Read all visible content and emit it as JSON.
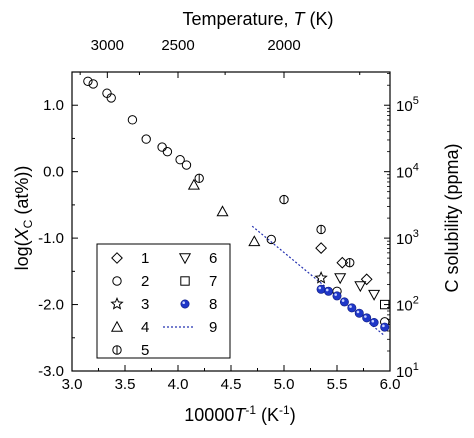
{
  "chart_data": {
    "type": "scatter",
    "x_axis_bottom": {
      "label_main": "10000",
      "label_T": "T",
      "label_sup": "-1",
      "label_unit": " (K",
      "label_unit_sup": "-1",
      "label_close": ")",
      "range": [
        3.0,
        6.0
      ],
      "ticks": [
        3.0,
        3.5,
        4.0,
        4.5,
        5.0,
        5.5,
        6.0
      ],
      "tick_labels": [
        "3.0",
        "3.5",
        "4.0",
        "4.5",
        "5.0",
        "5.5",
        "6.0"
      ]
    },
    "x_axis_top": {
      "label_prefix": "Temperature, ",
      "label_T": "T",
      "label_suffix": " (K)",
      "ticks_K": [
        3000,
        2500,
        2000
      ],
      "tick_labels": [
        "3000",
        "2500",
        "2000"
      ]
    },
    "y_axis_left": {
      "label_prefix": "log(",
      "label_X": "X",
      "label_sub": "C",
      "label_suffix": " (at%))",
      "range": [
        -3.0,
        1.5
      ],
      "ticks": [
        1.0,
        0.0,
        -1.0,
        -2.0,
        -3.0
      ],
      "tick_labels": [
        "1.0",
        "0.0",
        "-1.0",
        "-2.0",
        "-3.0"
      ]
    },
    "y_axis_right": {
      "label": "C solubility (ppma)",
      "ticks_ppma": [
        100000,
        10000,
        1000,
        100,
        10
      ],
      "tick_labels": [
        {
          "base": "10",
          "exp": "5"
        },
        {
          "base": "10",
          "exp": "4"
        },
        {
          "base": "10",
          "exp": "3"
        },
        {
          "base": "10",
          "exp": "2"
        },
        {
          "base": "10",
          "exp": "1"
        }
      ]
    },
    "series": [
      {
        "name": "1",
        "marker": "diamond",
        "points": [
          [
            5.35,
            -1.15
          ],
          [
            5.55,
            -1.37
          ],
          [
            5.78,
            -1.62
          ]
        ]
      },
      {
        "name": "2",
        "marker": "circle",
        "points": [
          [
            3.15,
            1.36
          ],
          [
            3.2,
            1.32
          ],
          [
            3.33,
            1.18
          ],
          [
            3.37,
            1.11
          ],
          [
            3.57,
            0.78
          ],
          [
            3.7,
            0.49
          ],
          [
            3.85,
            0.37
          ],
          [
            3.9,
            0.3
          ],
          [
            4.02,
            0.18
          ],
          [
            4.08,
            0.1
          ],
          [
            4.88,
            -1.02
          ],
          [
            5.5,
            -1.8
          ],
          [
            5.95,
            -2.26
          ]
        ]
      },
      {
        "name": "3",
        "marker": "star",
        "points": [
          [
            5.35,
            -1.6
          ]
        ]
      },
      {
        "name": "4",
        "marker": "triangle-up",
        "points": [
          [
            4.15,
            -0.2
          ],
          [
            4.42,
            -0.6
          ],
          [
            4.72,
            -1.05
          ]
        ]
      },
      {
        "name": "5",
        "marker": "circle-bar",
        "points": [
          [
            4.2,
            -0.1
          ],
          [
            5.0,
            -0.42
          ],
          [
            5.35,
            -0.87
          ],
          [
            5.62,
            -1.37
          ]
        ]
      },
      {
        "name": "6",
        "marker": "triangle-down",
        "points": [
          [
            5.53,
            -1.6
          ],
          [
            5.72,
            -1.72
          ],
          [
            5.85,
            -1.85
          ]
        ]
      },
      {
        "name": "7",
        "marker": "square",
        "points": [
          [
            5.95,
            -2.0
          ]
        ]
      },
      {
        "name": "8",
        "marker": "filled-circle",
        "points": [
          [
            5.35,
            -1.77
          ],
          [
            5.42,
            -1.8
          ],
          [
            5.5,
            -1.87
          ],
          [
            5.57,
            -1.96
          ],
          [
            5.64,
            -2.05
          ],
          [
            5.71,
            -2.13
          ],
          [
            5.78,
            -2.2
          ],
          [
            5.85,
            -2.27
          ],
          [
            5.95,
            -2.34
          ]
        ]
      },
      {
        "name": "9",
        "marker": "dotted-line",
        "points": [
          [
            4.7,
            -0.82
          ],
          [
            5.95,
            -2.47
          ]
        ]
      }
    ],
    "legend": {
      "placement": "lower-left",
      "entries": [
        "1",
        "2",
        "3",
        "4",
        "5",
        "6",
        "7",
        "8",
        "9"
      ]
    },
    "colors": {
      "markers": "#000000",
      "series8_fill": "#1f37c8",
      "series9_line": "#2330b0"
    },
    "grid": false
  }
}
